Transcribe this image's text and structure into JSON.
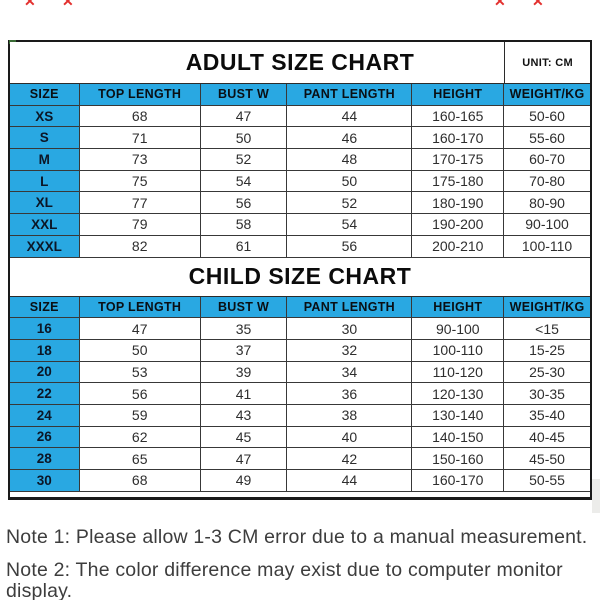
{
  "colors": {
    "header_blue": "#29a8e2",
    "mark_red": "#e3302e"
  },
  "decor": {
    "mark_glyph": "✕"
  },
  "chart_data": [
    {
      "type": "table",
      "title": "ADULT SIZE CHART",
      "unit_label": "UNIT: CM",
      "columns": [
        "SIZE",
        "TOP LENGTH",
        "BUST W",
        "PANT LENGTH",
        "HEIGHT",
        "WEIGHT/KG"
      ],
      "rows": [
        [
          "XS",
          "68",
          "47",
          "44",
          "160-165",
          "50-60"
        ],
        [
          "S",
          "71",
          "50",
          "46",
          "160-170",
          "55-60"
        ],
        [
          "M",
          "73",
          "52",
          "48",
          "170-175",
          "60-70"
        ],
        [
          "L",
          "75",
          "54",
          "50",
          "175-180",
          "70-80"
        ],
        [
          "XL",
          "77",
          "56",
          "52",
          "180-190",
          "80-90"
        ],
        [
          "XXL",
          "79",
          "58",
          "54",
          "190-200",
          "90-100"
        ],
        [
          "XXXL",
          "82",
          "61",
          "56",
          "200-210",
          "100-110"
        ]
      ]
    },
    {
      "type": "table",
      "title": "CHILD SIZE CHART",
      "columns": [
        "SIZE",
        "TOP LENGTH",
        "BUST W",
        "PANT LENGTH",
        "HEIGHT",
        "WEIGHT/KG"
      ],
      "rows": [
        [
          "16",
          "47",
          "35",
          "30",
          "90-100",
          "<15"
        ],
        [
          "18",
          "50",
          "37",
          "32",
          "100-110",
          "15-25"
        ],
        [
          "20",
          "53",
          "39",
          "34",
          "110-120",
          "25-30"
        ],
        [
          "22",
          "56",
          "41",
          "36",
          "120-130",
          "30-35"
        ],
        [
          "24",
          "59",
          "43",
          "38",
          "130-140",
          "35-40"
        ],
        [
          "26",
          "62",
          "45",
          "40",
          "140-150",
          "40-45"
        ],
        [
          "28",
          "65",
          "47",
          "42",
          "150-160",
          "45-50"
        ],
        [
          "30",
          "68",
          "49",
          "44",
          "160-170",
          "50-55"
        ]
      ]
    }
  ],
  "notes": [
    "Note 1: Please allow 1-3 CM error due to a manual measurement.",
    "Note 2: The color difference may exist due to computer monitor display."
  ]
}
